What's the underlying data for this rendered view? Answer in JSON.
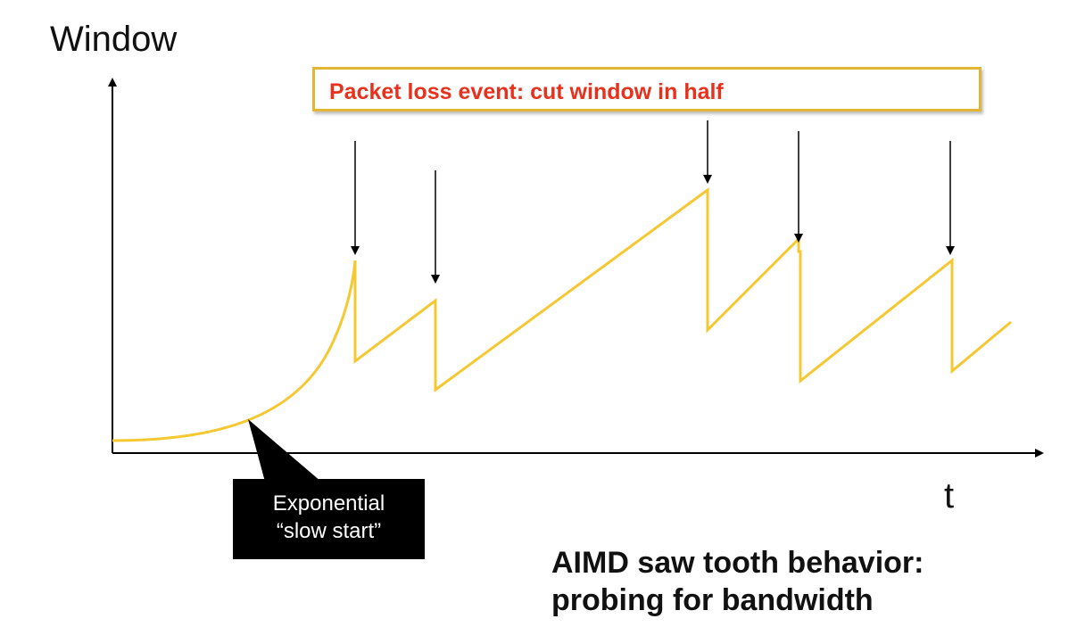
{
  "axes": {
    "y_label": "Window",
    "x_label": "t"
  },
  "loss_event_label": "Packet loss event: cut window in half",
  "slow_start_callout": {
    "line1": "Exponential",
    "line2": "“slow start”"
  },
  "caption": {
    "line1": "AIMD saw tooth behavior:",
    "line2": "probing for bandwidth"
  },
  "colors": {
    "curve": "#f5c832",
    "box_border": "#e3b534",
    "box_text": "#e8311d",
    "callout_bg": "#000000"
  }
}
